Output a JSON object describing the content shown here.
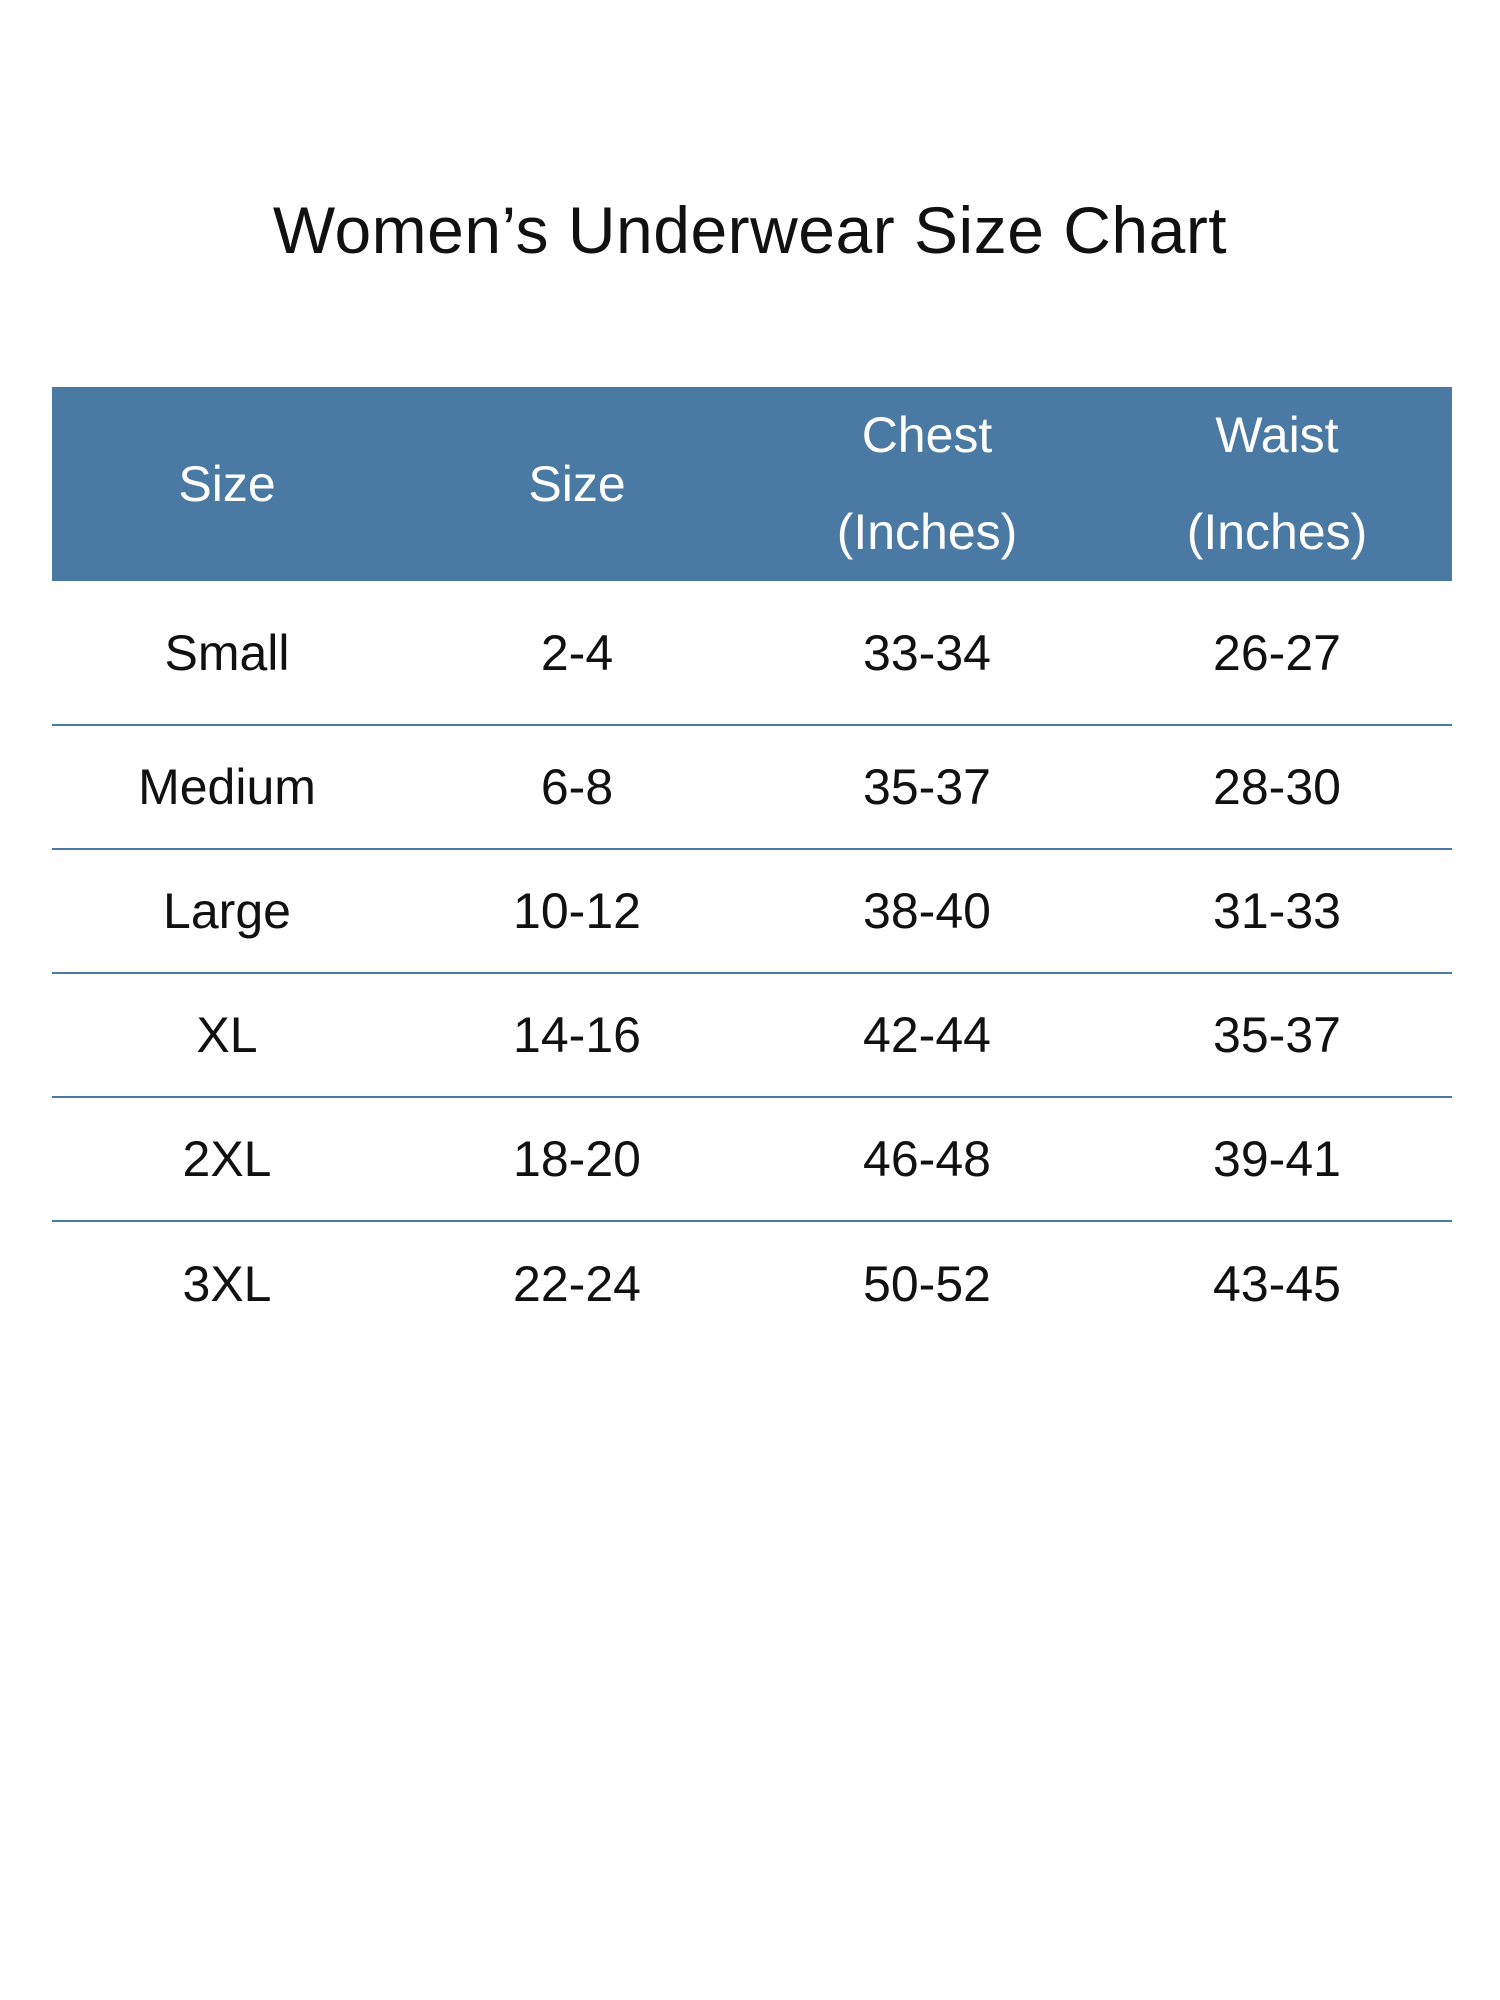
{
  "title": "Women’s Underwear Size Chart",
  "colors": {
    "header_background": "#4a7aa3",
    "header_text": "#ffffff",
    "row_divider": "#4a7aa3",
    "body_text": "#111111"
  },
  "table": {
    "headers": [
      {
        "line1": "Size",
        "line2": ""
      },
      {
        "line1": "Size",
        "line2": ""
      },
      {
        "line1": "Chest",
        "line2": "(Inches)"
      },
      {
        "line1": "Waist",
        "line2": "(Inches)"
      }
    ],
    "rows": [
      [
        "Small",
        "2-4",
        "33-34",
        "26-27"
      ],
      [
        "Medium",
        "6-8",
        "35-37",
        "28-30"
      ],
      [
        "Large",
        "10-12",
        "38-40",
        "31-33"
      ],
      [
        "XL",
        "14-16",
        "42-44",
        "35-37"
      ],
      [
        "2XL",
        "18-20",
        "46-48",
        "39-41"
      ],
      [
        "3XL",
        "22-24",
        "50-52",
        "43-45"
      ]
    ]
  }
}
